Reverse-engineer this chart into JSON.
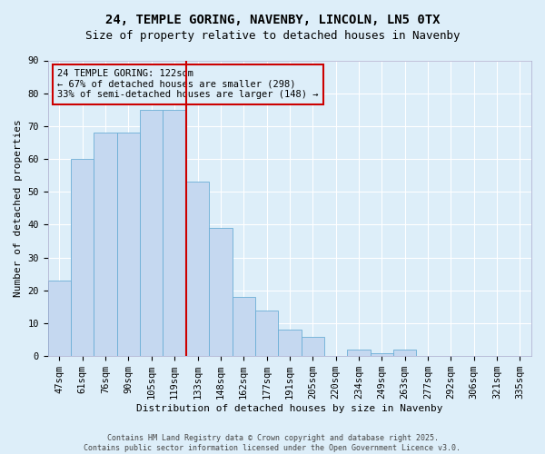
{
  "title1": "24, TEMPLE GORING, NAVENBY, LINCOLN, LN5 0TX",
  "title2": "Size of property relative to detached houses in Navenby",
  "xlabel": "Distribution of detached houses by size in Navenby",
  "ylabel": "Number of detached properties",
  "categories": [
    "47sqm",
    "61sqm",
    "76sqm",
    "90sqm",
    "105sqm",
    "119sqm",
    "133sqm",
    "148sqm",
    "162sqm",
    "177sqm",
    "191sqm",
    "205sqm",
    "220sqm",
    "234sqm",
    "249sqm",
    "263sqm",
    "277sqm",
    "292sqm",
    "306sqm",
    "321sqm",
    "335sqm"
  ],
  "values": [
    23,
    60,
    68,
    68,
    75,
    75,
    53,
    39,
    18,
    14,
    8,
    6,
    0,
    2,
    1,
    2,
    0,
    0,
    0,
    0,
    0
  ],
  "bar_color": "#c5d8f0",
  "bar_edge_color": "#6baed6",
  "vline_color": "#cc0000",
  "ylim": [
    0,
    90
  ],
  "yticks": [
    0,
    10,
    20,
    30,
    40,
    50,
    60,
    70,
    80,
    90
  ],
  "annotation_title": "24 TEMPLE GORING: 122sqm",
  "annotation_line1": "← 67% of detached houses are smaller (298)",
  "annotation_line2": "33% of semi-detached houses are larger (148) →",
  "annotation_box_color": "#cc0000",
  "footer": "Contains HM Land Registry data © Crown copyright and database right 2025.\nContains public sector information licensed under the Open Government Licence v3.0.",
  "bg_color": "#ddeef9",
  "grid_color": "#ffffff",
  "title_fontsize": 10,
  "subtitle_fontsize": 9,
  "axis_label_fontsize": 8,
  "tick_fontsize": 7.5,
  "annotation_fontsize": 7.5,
  "footer_fontsize": 6
}
